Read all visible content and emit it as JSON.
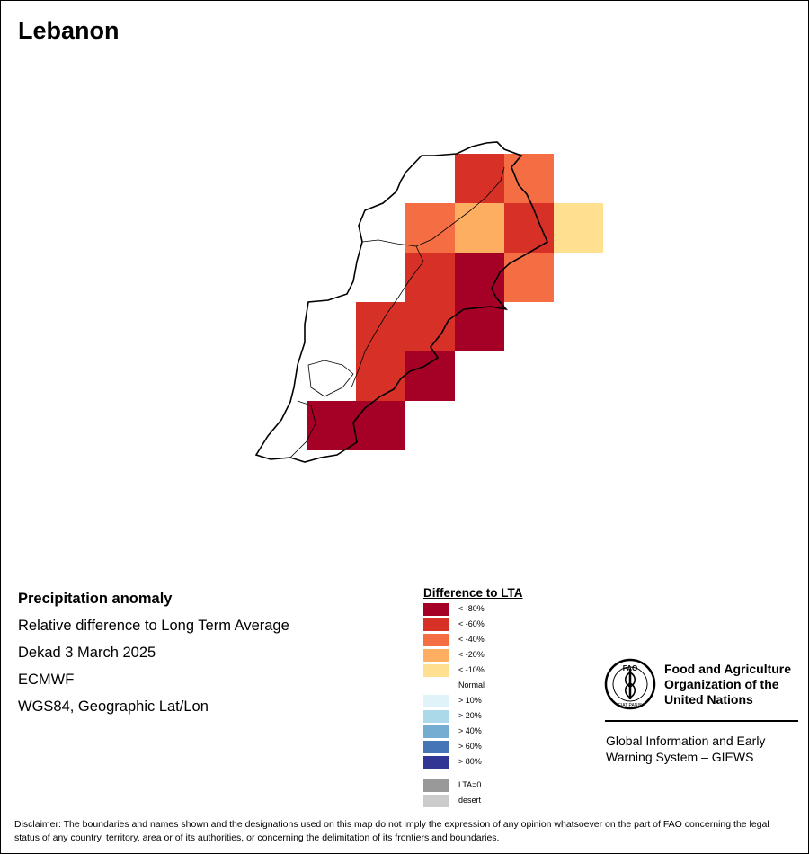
{
  "title": "Lebanon",
  "info": {
    "heading": "Precipitation anomaly",
    "line1": "Relative difference to Long Term Average",
    "line2": "Dekad 3 March 2025",
    "line3": "ECMWF",
    "line4": "WGS84, Geographic Lat/Lon"
  },
  "legend": {
    "title": "Difference to LTA",
    "items": [
      {
        "label": "< -80%",
        "color": "#a50026"
      },
      {
        "label": "< -60%",
        "color": "#d73027"
      },
      {
        "label": "< -40%",
        "color": "#f46d43"
      },
      {
        "label": "< -20%",
        "color": "#fdae61"
      },
      {
        "label": "< -10%",
        "color": "#fee090"
      },
      {
        "label": "Normal",
        "color": "#ffffff"
      },
      {
        "label": "> 10%",
        "color": "#e0f3f8"
      },
      {
        "label": "> 20%",
        "color": "#abd9e9"
      },
      {
        "label": "> 40%",
        "color": "#74add1"
      },
      {
        "label": "> 60%",
        "color": "#4575b4"
      },
      {
        "label": "> 80%",
        "color": "#313695"
      },
      {
        "label": "LTA=0",
        "color": "#999999"
      },
      {
        "label": "desert",
        "color": "#cccccc"
      }
    ]
  },
  "grid": [
    [
      "",
      "",
      "",
      "",
      "-60",
      "-40",
      "",
      ""
    ],
    [
      "",
      "",
      "",
      "-40",
      "-20",
      "-60",
      "-10",
      ""
    ],
    [
      "",
      "",
      "",
      "-60",
      "-80",
      "-40",
      "",
      ""
    ],
    [
      "",
      "",
      "-60",
      "-60",
      "-80",
      "",
      "",
      ""
    ],
    [
      "",
      "",
      "-60",
      "-80",
      "",
      "",
      "",
      ""
    ],
    [
      "",
      "-80",
      "-80",
      "",
      "",
      "",
      "",
      ""
    ]
  ],
  "fao": {
    "emblem_text": "FAO",
    "motto": "FIAT PANIS",
    "name_line1": "Food and Agriculture",
    "name_line2": "Organization of the",
    "name_line3": "United Nations"
  },
  "giews": {
    "line1": "Global Information and Early",
    "line2": "Warning System – GIEWS"
  },
  "disclaimer": "Disclaimer: The boundaries and names shown and the designations used on this map do not imply the expression of any opinion whatsoever on the part of FAO concerning the legal status of any country, territory, area or of its authorities, or concerning the delimitation of its frontiers and boundaries."
}
